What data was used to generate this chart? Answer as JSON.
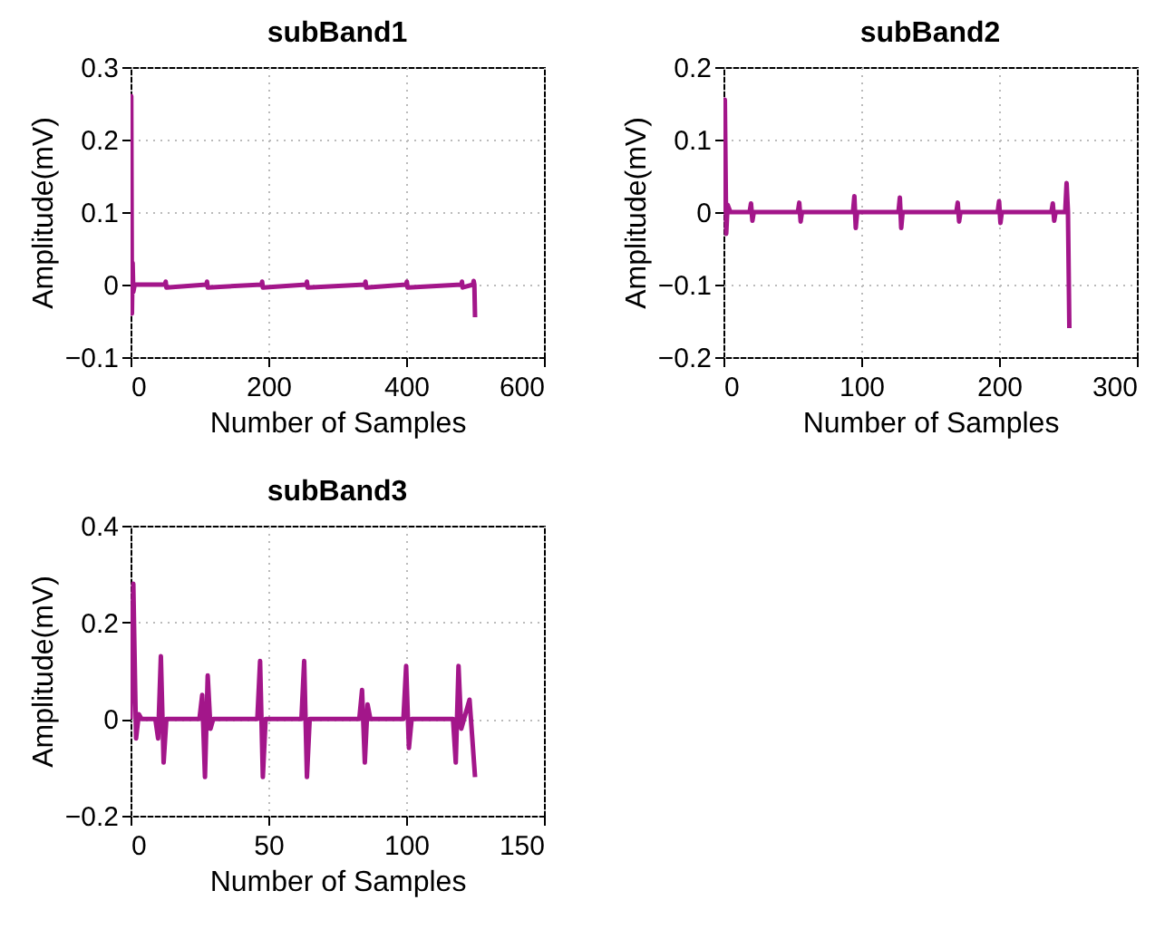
{
  "chart_data": [
    {
      "type": "line",
      "title": "subBand1",
      "xlabel": "Number of Samples",
      "ylabel": "Amplitude(mV)",
      "xlim": [
        0,
        600
      ],
      "xticks": [
        0,
        200,
        400,
        600
      ],
      "ylim": [
        -0.1,
        0.3
      ],
      "yticks": [
        -0.1,
        0,
        0.1,
        0.2,
        0.3
      ],
      "grid": true,
      "series": [
        {
          "color": "#a3168a",
          "x": [
            0,
            1,
            2,
            3,
            4,
            6,
            50,
            51,
            52,
            110,
            111,
            112,
            190,
            191,
            192,
            255,
            256,
            257,
            340,
            341,
            342,
            400,
            401,
            402,
            480,
            481,
            482,
            497,
            498,
            499,
            500
          ],
          "values": [
            0,
            0.26,
            -0.04,
            0.03,
            -0.01,
            0,
            0,
            0.004,
            -0.004,
            0,
            0.004,
            -0.004,
            0,
            0.004,
            -0.004,
            0,
            0.004,
            -0.004,
            0,
            0.004,
            -0.004,
            0,
            0.004,
            -0.004,
            0,
            0.004,
            -0.004,
            0,
            0.005,
            0,
            -0.045
          ]
        }
      ]
    },
    {
      "type": "line",
      "title": "subBand2",
      "xlabel": "Number of Samples",
      "ylabel": "Amplitude(mV)",
      "xlim": [
        0,
        300
      ],
      "xticks": [
        0,
        100,
        200,
        300
      ],
      "ylim": [
        -0.2,
        0.2
      ],
      "yticks": [
        -0.2,
        -0.1,
        0,
        0.1,
        0.2
      ],
      "grid": true,
      "series": [
        {
          "color": "#a3168a",
          "x": [
            0,
            1,
            2,
            3,
            5,
            19,
            20,
            21,
            22,
            54,
            55,
            56,
            57,
            94,
            95,
            96,
            97,
            127,
            128,
            129,
            130,
            169,
            170,
            171,
            172,
            199,
            200,
            201,
            202,
            238,
            239,
            240,
            241,
            248,
            249,
            250,
            251
          ],
          "values": [
            0,
            0.155,
            -0.03,
            0.01,
            0,
            0,
            0.012,
            -0.012,
            0,
            0,
            0.013,
            -0.013,
            0,
            0,
            0.022,
            -0.022,
            0,
            0,
            0.02,
            -0.022,
            0,
            0,
            0.013,
            -0.013,
            0,
            0,
            0.015,
            -0.015,
            0,
            0,
            0.012,
            -0.012,
            0,
            0,
            0.04,
            0,
            -0.16
          ]
        }
      ]
    },
    {
      "type": "line",
      "title": "subBand3",
      "xlabel": "Number of Samples",
      "ylabel": "Amplitude(mV)",
      "xlim": [
        0,
        150
      ],
      "xticks": [
        0,
        50,
        100,
        150
      ],
      "ylim": [
        -0.2,
        0.4
      ],
      "yticks": [
        -0.2,
        0,
        0.2,
        0.4
      ],
      "grid": true,
      "series": [
        {
          "color": "#a3168a",
          "x": [
            0,
            1,
            2,
            3,
            4,
            9,
            10,
            11,
            12,
            13,
            25,
            26,
            27,
            28,
            29,
            30,
            46,
            47,
            48,
            49,
            62,
            63,
            64,
            65,
            83,
            84,
            85,
            86,
            87,
            99,
            100,
            101,
            102,
            117,
            118,
            119,
            120,
            121,
            123,
            125
          ],
          "values": [
            0,
            0.28,
            -0.04,
            0.01,
            0,
            0,
            -0.04,
            0.13,
            -0.09,
            0,
            0,
            0.05,
            -0.12,
            0.09,
            -0.02,
            0,
            0,
            0.12,
            -0.12,
            0,
            0,
            0.12,
            -0.12,
            0,
            0,
            0.06,
            -0.09,
            0.03,
            0,
            0,
            0.11,
            -0.06,
            0,
            0,
            -0.09,
            0.11,
            -0.02,
            0,
            0.04,
            -0.12
          ]
        }
      ]
    }
  ]
}
